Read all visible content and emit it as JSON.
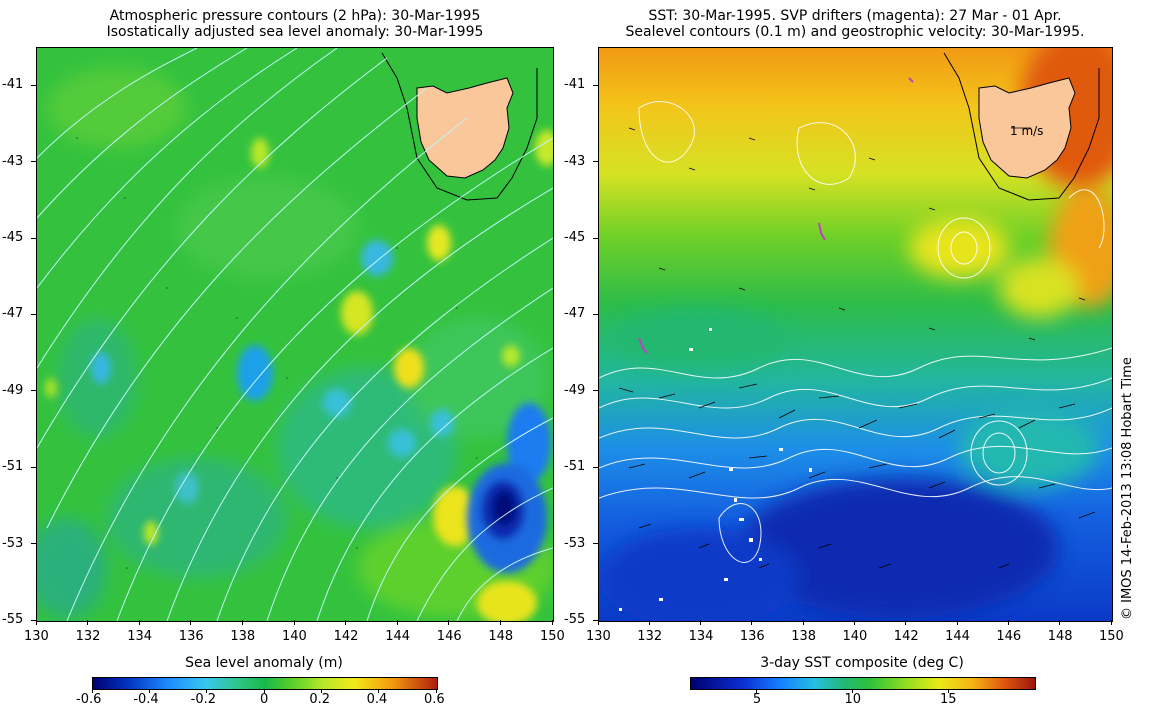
{
  "left_panel": {
    "title_line1": "Atmospheric pressure contours (2 hPa): 30-Mar-1995",
    "title_line2": "Isostatically adjusted sea level anomaly: 30-Mar-1995",
    "colorbar_title": "Sea level anomaly (m)",
    "colorbar_ticks": [
      "-0.6",
      "-0.4",
      "-0.2",
      "0",
      "0.2",
      "0.4",
      "0.6"
    ],
    "colorbar_range": [
      -0.6,
      0.6
    ]
  },
  "right_panel": {
    "title_line1": "SST: 30-Mar-1995. SVP drifters (magenta): 27 Mar - 01 Apr.",
    "title_line2": "Sealevel contours (0.1 m) and geostrophic velocity: 30-Mar-1995.",
    "colorbar_title": "3-day SST composite (deg C)",
    "colorbar_ticks": [
      "5",
      "10",
      "15"
    ],
    "colorbar_range": [
      1.5,
      19.5
    ],
    "velocity_scale_label": "1 m/s"
  },
  "axes": {
    "lat_ticks": [
      "-41",
      "-43",
      "-45",
      "-47",
      "-49",
      "-51",
      "-53",
      "-55"
    ],
    "lon_ticks": [
      "130",
      "132",
      "134",
      "136",
      "138",
      "140",
      "142",
      "144",
      "146",
      "148",
      "150"
    ],
    "lat_range": [
      -55,
      -40
    ],
    "lon_range": [
      130,
      150
    ]
  },
  "watermark": "© IMOS 14-Feb-2013 13:08 Hobart Time",
  "colors": {
    "land": "#f9c79a",
    "contour": "#bff5f5",
    "sst_contour": "#ffffff",
    "drifter": "#c040c0"
  }
}
